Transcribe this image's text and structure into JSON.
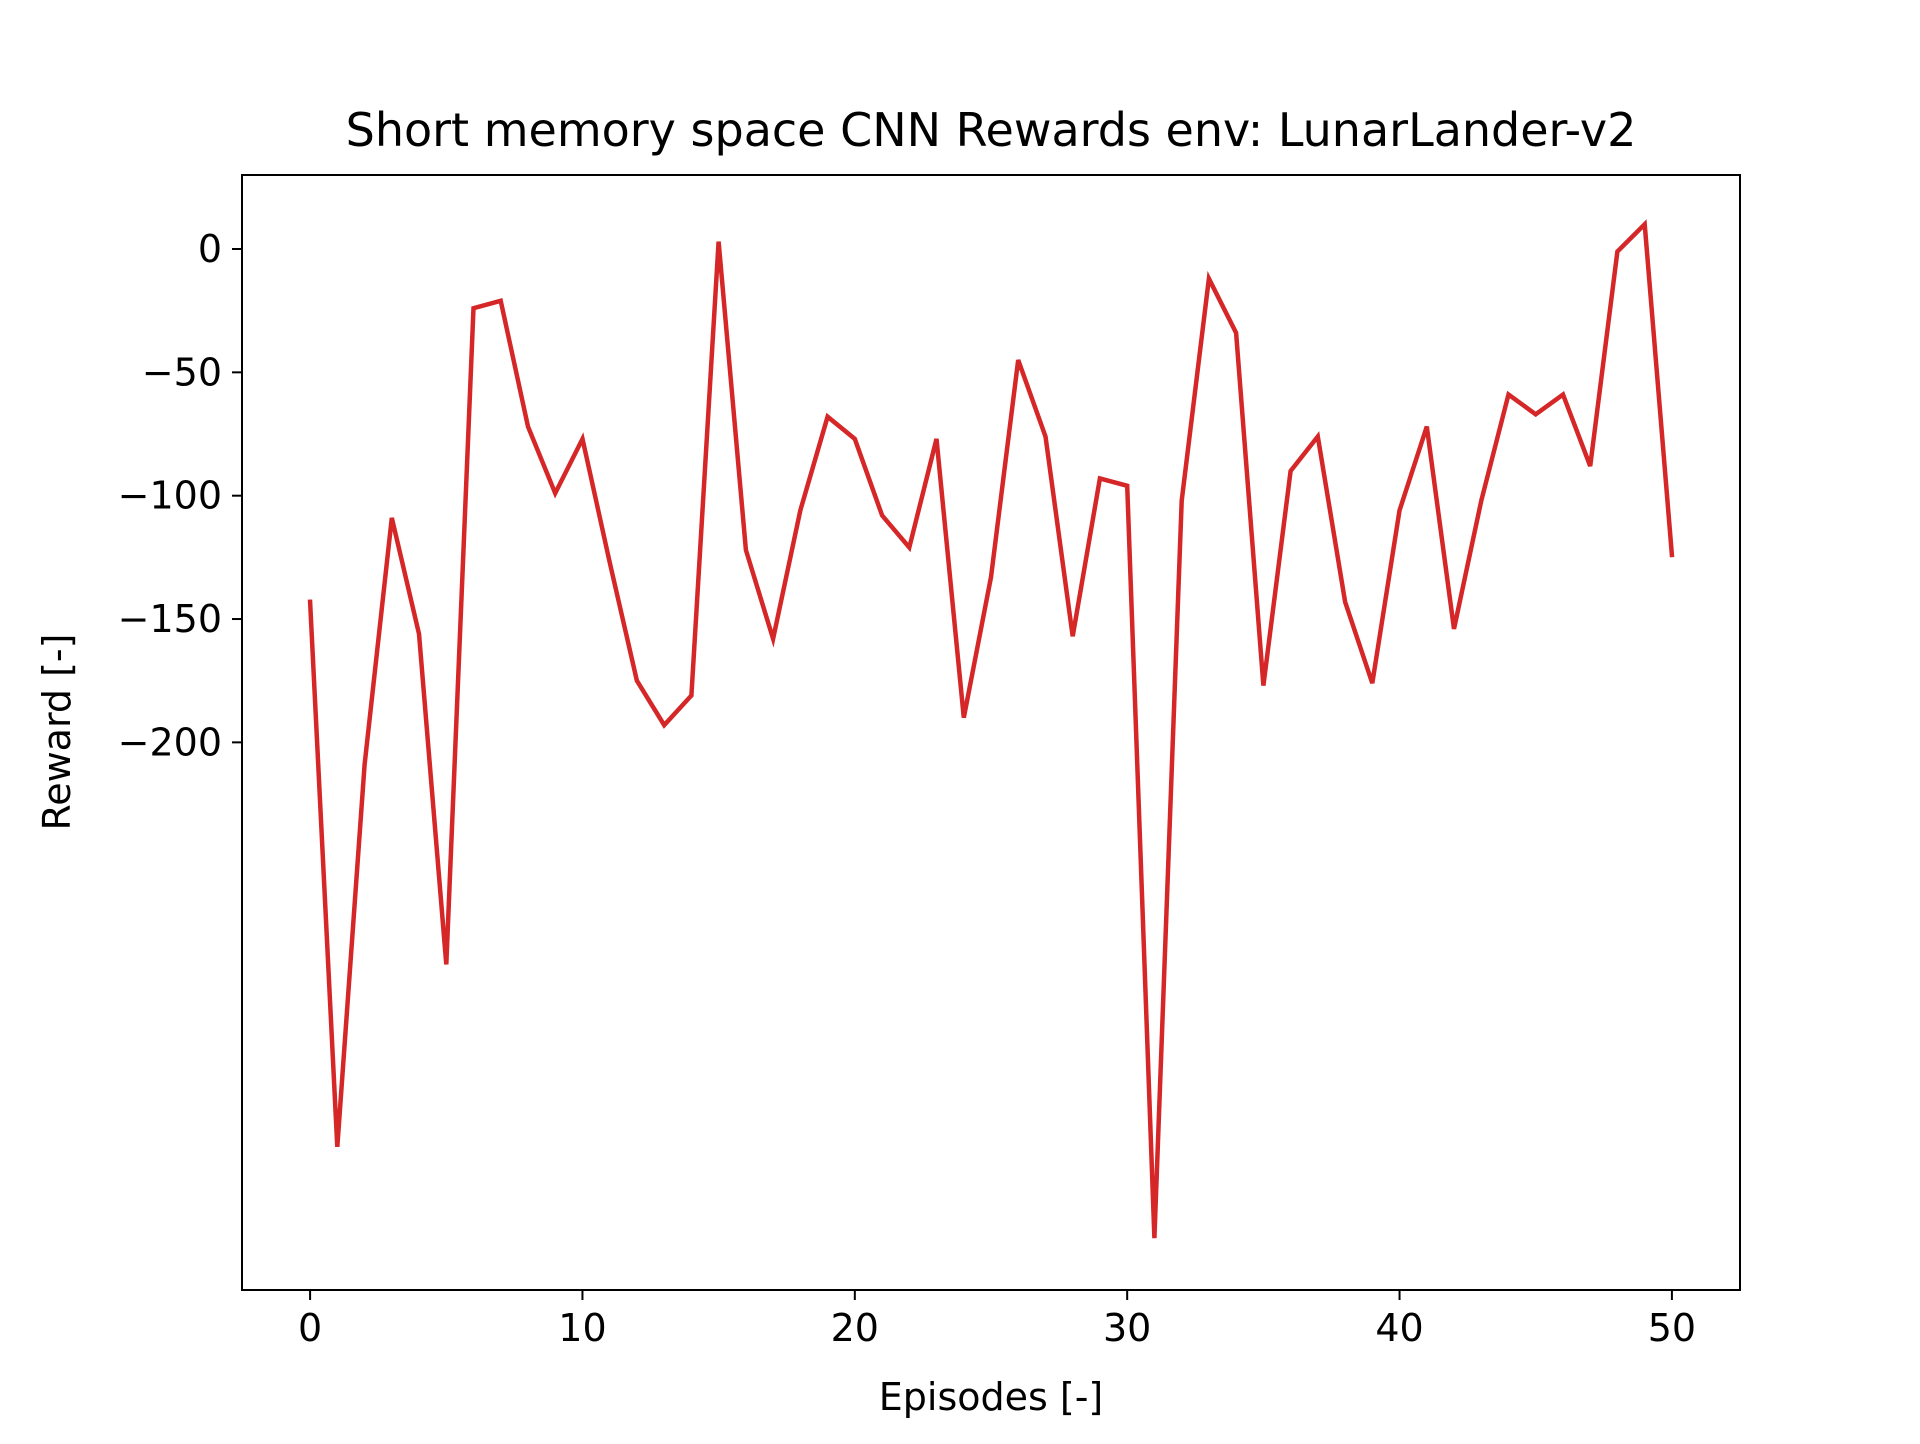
{
  "chart_data": {
    "type": "line",
    "title": "Short memory space CNN Rewards env: LunarLander-v2",
    "xlabel": "Episodes [-]",
    "ylabel": "Reward [-]",
    "xlim": [
      -2.5,
      52.5
    ],
    "ylim": [
      -422,
      30
    ],
    "xticks": [
      0,
      10,
      20,
      30,
      40,
      50
    ],
    "xtick_labels": [
      "0",
      "10",
      "20",
      "30",
      "40",
      "50"
    ],
    "yticks": [
      0,
      -50,
      -100,
      -150,
      -200
    ],
    "ytick_labels": [
      "0",
      "−50",
      "−100",
      "−150",
      "−200"
    ],
    "grid": false,
    "legend": "none",
    "line_color": "#d62728",
    "series": [
      {
        "x": [
          0,
          1,
          2,
          3,
          4,
          5,
          6,
          7,
          8,
          9,
          10,
          11,
          12,
          13,
          14,
          15,
          16,
          17,
          18,
          19,
          20,
          21,
          22,
          23,
          24,
          25,
          26,
          27,
          28,
          29,
          30,
          31,
          32,
          33,
          34,
          35,
          36,
          37,
          38,
          39,
          40,
          41,
          42,
          43,
          44,
          45,
          46,
          47,
          48,
          49,
          50
        ],
        "values": [
          -143,
          -364,
          -209,
          -109,
          -156,
          -290,
          -24,
          -21,
          -72,
          -99,
          -77,
          -127,
          -175,
          -193,
          -181,
          3,
          -122,
          -158,
          -106,
          -68,
          -77,
          -108,
          -121,
          -77,
          -190,
          -133,
          -45,
          -76,
          -157,
          -93,
          -96,
          -401,
          -102,
          -12,
          -34,
          -177,
          -90,
          -76,
          -143,
          -176,
          -106,
          -72,
          -154,
          -102,
          -59,
          -67,
          -59,
          -88,
          -1,
          10,
          -124
        ]
      }
    ]
  }
}
